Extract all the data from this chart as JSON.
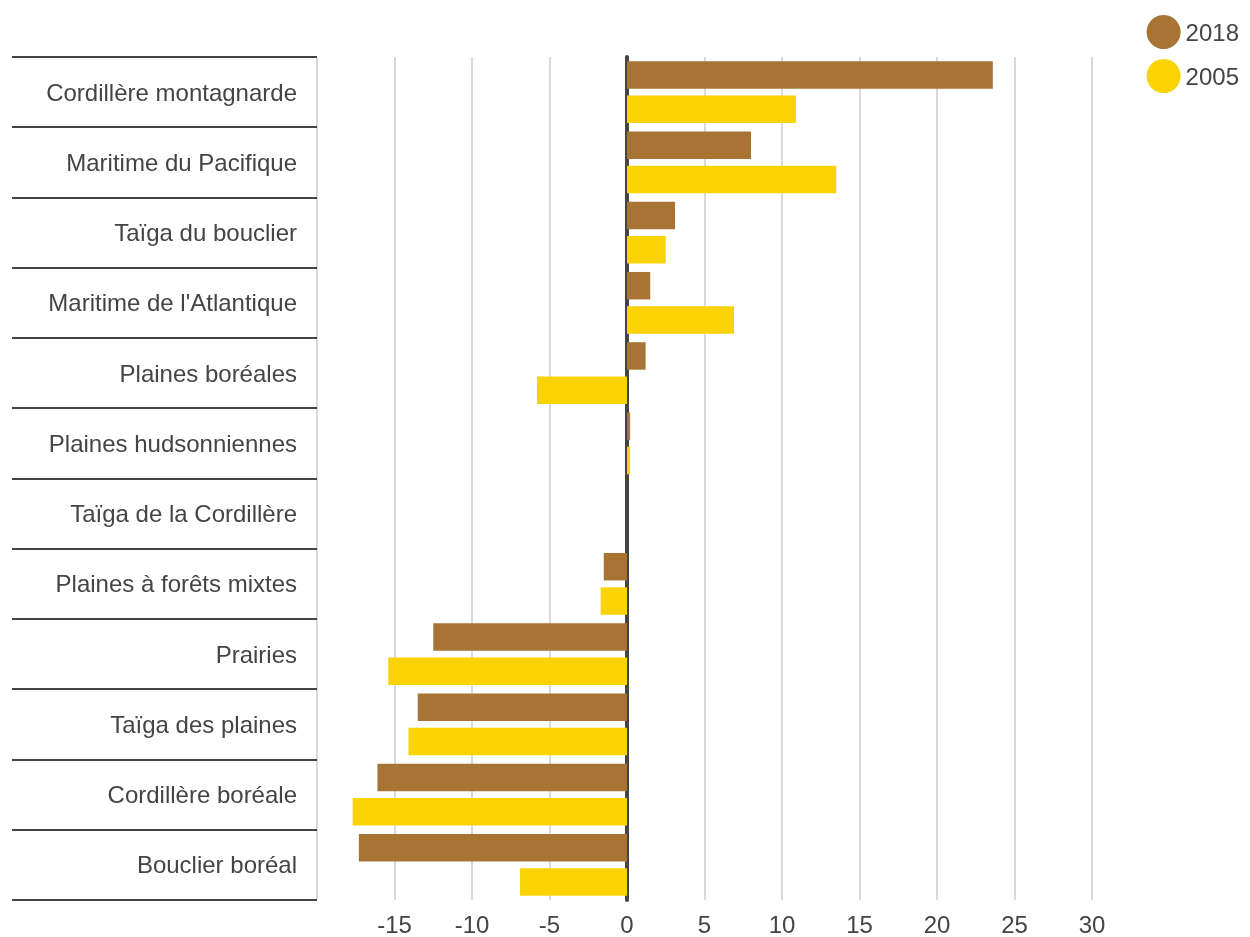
{
  "chart_data": {
    "type": "bar",
    "orientation": "horizontal",
    "categories": [
      "Cordillère montagnarde",
      "Maritime du Pacifique",
      "Taïga du bouclier",
      "Maritime de l'Atlantique",
      "Plaines boréales",
      "Plaines hudsonniennes",
      "Taïga de la Cordillère",
      "Plaines à forêts mixtes",
      "Prairies",
      "Taïga des plaines",
      "Cordillère boréale",
      "Bouclier boréal"
    ],
    "series": [
      {
        "name": "2018",
        "color": "#a87434",
        "values": [
          23.6,
          8.0,
          3.1,
          1.5,
          1.2,
          0.2,
          null,
          -1.5,
          -12.5,
          -13.5,
          -16.1,
          -17.3
        ]
      },
      {
        "name": "2005",
        "color": "#f9d304",
        "values": [
          10.9,
          13.5,
          2.5,
          6.9,
          -5.8,
          0.2,
          null,
          -1.7,
          -15.4,
          -14.1,
          -17.7,
          -6.9
        ]
      }
    ],
    "xlim": [
      -20,
      30
    ],
    "xticks": [
      {
        "value": -20,
        "label": null
      },
      -15,
      -10,
      -5,
      0,
      5,
      10,
      15,
      20,
      25,
      30
    ],
    "grid": "x",
    "legend": "top right",
    "marker": "circle"
  }
}
